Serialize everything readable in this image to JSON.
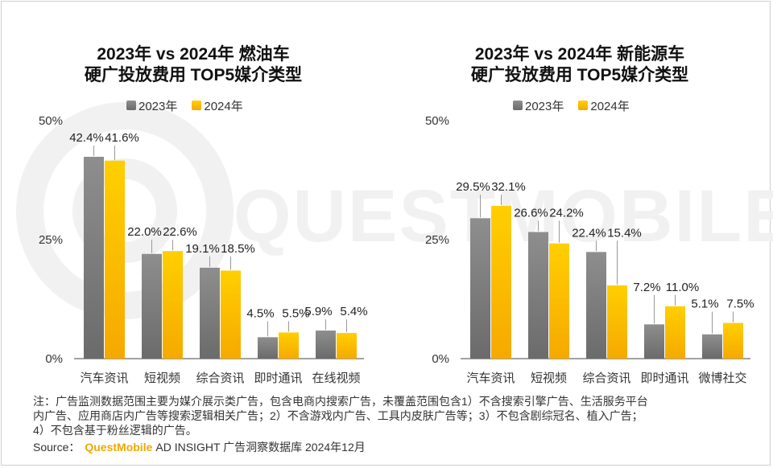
{
  "legend": {
    "y2023": "2023年",
    "y2024": "2024年"
  },
  "colors": {
    "y2023": "#7a7a7a",
    "y2024": "#ffc000"
  },
  "chart_data": [
    {
      "type": "bar",
      "title_line1": "2023年 vs 2024年 燃油车",
      "title_line2": "硬广投放费用 TOP5媒介类型",
      "categories": [
        "汽车资讯",
        "短视频",
        "综合资讯",
        "即时通讯",
        "在线视频"
      ],
      "series": [
        {
          "name": "2023年",
          "values": [
            42.4,
            22.0,
            19.1,
            4.5,
            5.9
          ],
          "labels": [
            "42.4%",
            "22.0%",
            "19.1%",
            "4.5%",
            "5.9%"
          ]
        },
        {
          "name": "2024年",
          "values": [
            41.6,
            22.6,
            18.5,
            5.5,
            5.4
          ],
          "labels": [
            "41.6%",
            "22.6%",
            "18.5%",
            "5.5%",
            "5.4%"
          ]
        }
      ],
      "yticks": [
        "0%",
        "25%",
        "50%"
      ],
      "ylim": [
        0,
        50
      ],
      "grid": false,
      "legend_position": "top"
    },
    {
      "type": "bar",
      "title_line1": "2023年 vs 2024年 新能源车",
      "title_line2": "硬广投放费用 TOP5媒介类型",
      "categories": [
        "汽车资讯",
        "短视频",
        "综合资讯",
        "即时通讯",
        "微博社交"
      ],
      "series": [
        {
          "name": "2023年",
          "values": [
            29.5,
            26.6,
            22.4,
            7.2,
            5.1
          ],
          "labels": [
            "29.5%",
            "26.6%",
            "22.4%",
            "7.2%",
            "5.1%"
          ]
        },
        {
          "name": "2024年",
          "values": [
            32.1,
            24.2,
            15.4,
            11.0,
            7.5
          ],
          "labels": [
            "32.1%",
            "24.2%",
            "15.4%",
            "11.0%",
            "7.5%"
          ]
        }
      ],
      "yticks": [
        "0%",
        "25%",
        "50%"
      ],
      "ylim": [
        0,
        50
      ],
      "grid": false,
      "legend_position": "top"
    }
  ],
  "notes": [
    "注：广告监测数据范围主要为媒介展示类广告，包含电商内搜索广告，未覆盖范围包含1）不含搜索引擎广告、生活服务平台",
    "内广告、应用商店内广告等搜索逻辑相关广告；2）不含游戏内广告、工具内皮肤广告等；3）不包含剧综冠名、植入广告；",
    "4）不包含基于粉丝逻辑的广告。"
  ],
  "source": {
    "label": "Source：",
    "brand": "QuestMobile",
    "text": "AD INSIGHT 广告洞察数据库 2024年12月"
  },
  "watermark": "QUESTMOBILE"
}
